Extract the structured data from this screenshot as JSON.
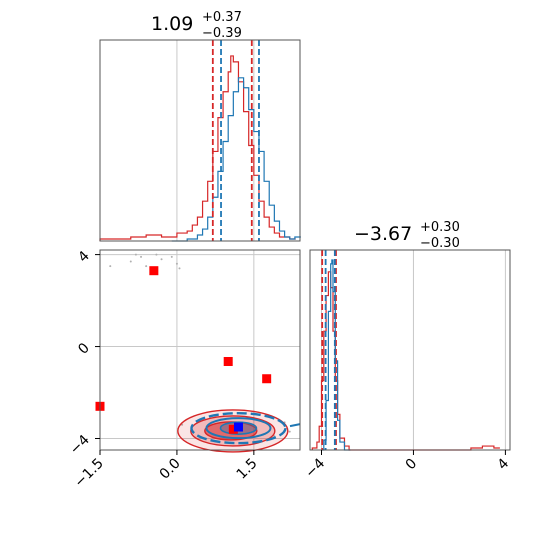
{
  "chart_data": {
    "type": "corner",
    "colors": {
      "series_a": "#d62728",
      "series_b": "#1f77b4",
      "marker_red": "#ff0000",
      "marker_blue": "#0000ff",
      "grid": "#c8c8c8"
    },
    "param1": {
      "title_main": "1.09",
      "title_sup": "+0.37",
      "title_sub": "−0.39",
      "range": [
        -1.5,
        2.4
      ],
      "ticks": [
        -1.5,
        0.0,
        1.5
      ],
      "tick_labels": [
        "−1.5",
        "0.0",
        "1.5"
      ],
      "quantiles_red": [
        0.7,
        1.46
      ],
      "quantiles_blue": [
        0.86,
        1.6
      ],
      "hist_red": [
        [
          -1.5,
          0.01
        ],
        [
          -1.2,
          0.01
        ],
        [
          -0.9,
          0.02
        ],
        [
          -0.6,
          0.03
        ],
        [
          -0.3,
          0.02
        ],
        [
          0.0,
          0.04
        ],
        [
          0.2,
          0.05
        ],
        [
          0.3,
          0.08
        ],
        [
          0.4,
          0.12
        ],
        [
          0.5,
          0.2
        ],
        [
          0.6,
          0.3
        ],
        [
          0.7,
          0.45
        ],
        [
          0.8,
          0.62
        ],
        [
          0.9,
          0.75
        ],
        [
          1.0,
          0.85
        ],
        [
          1.05,
          0.93
        ],
        [
          1.1,
          0.9
        ],
        [
          1.2,
          0.8
        ],
        [
          1.3,
          0.65
        ],
        [
          1.4,
          0.48
        ],
        [
          1.5,
          0.33
        ],
        [
          1.6,
          0.2
        ],
        [
          1.7,
          0.12
        ],
        [
          1.8,
          0.07
        ],
        [
          1.9,
          0.04
        ],
        [
          2.0,
          0.02
        ],
        [
          2.2,
          0.01
        ]
      ],
      "hist_blue": [
        [
          -0.1,
          0.0
        ],
        [
          0.2,
          0.01
        ],
        [
          0.4,
          0.03
        ],
        [
          0.5,
          0.06
        ],
        [
          0.6,
          0.12
        ],
        [
          0.7,
          0.22
        ],
        [
          0.8,
          0.35
        ],
        [
          0.9,
          0.5
        ],
        [
          1.0,
          0.63
        ],
        [
          1.1,
          0.75
        ],
        [
          1.2,
          0.82
        ],
        [
          1.3,
          0.77
        ],
        [
          1.4,
          0.66
        ],
        [
          1.5,
          0.55
        ],
        [
          1.6,
          0.45
        ],
        [
          1.7,
          0.3
        ],
        [
          1.8,
          0.18
        ],
        [
          1.9,
          0.1
        ],
        [
          2.0,
          0.05
        ],
        [
          2.1,
          0.02
        ],
        [
          2.2,
          0.01
        ],
        [
          2.3,
          0.02
        ]
      ]
    },
    "param2": {
      "title_main": "−3.67",
      "title_sup": "+0.30",
      "title_sub": "−0.30",
      "range": [
        -4.5,
        4.2
      ],
      "ticks": [
        -4,
        0,
        4
      ],
      "tick_labels": [
        "−4",
        "0",
        "4"
      ],
      "quantiles_red": [
        -3.97,
        -3.37
      ],
      "quantiles_blue": [
        -3.82,
        -3.42
      ],
      "hist_red": [
        [
          -4.4,
          0.01
        ],
        [
          -4.2,
          0.04
        ],
        [
          -4.1,
          0.12
        ],
        [
          -4.0,
          0.35
        ],
        [
          -3.9,
          0.6
        ],
        [
          -3.8,
          0.78
        ],
        [
          -3.7,
          0.9
        ],
        [
          -3.6,
          0.82
        ],
        [
          -3.5,
          0.6
        ],
        [
          -3.4,
          0.35
        ],
        [
          -3.3,
          0.18
        ],
        [
          -3.2,
          0.06
        ],
        [
          -3.0,
          0.02
        ],
        [
          -2.8,
          0.0
        ],
        [
          2.5,
          0.01
        ],
        [
          3.0,
          0.02
        ],
        [
          3.5,
          0.01
        ]
      ],
      "hist_blue": [
        [
          -4.0,
          0.0
        ],
        [
          -3.9,
          0.05
        ],
        [
          -3.8,
          0.25
        ],
        [
          -3.7,
          0.7
        ],
        [
          -3.6,
          0.94
        ],
        [
          -3.55,
          0.96
        ],
        [
          -3.5,
          0.8
        ],
        [
          -3.4,
          0.45
        ],
        [
          -3.3,
          0.15
        ],
        [
          -3.2,
          0.04
        ],
        [
          -3.0,
          0.0
        ]
      ]
    },
    "red_markers": [
      {
        "x": -0.45,
        "y": 3.3
      },
      {
        "x": 1.0,
        "y": -0.65
      },
      {
        "x": 1.75,
        "y": -1.4
      },
      {
        "x": -1.5,
        "y": -2.6
      },
      {
        "x": 1.1,
        "y": -3.6
      }
    ],
    "blue_marker": {
      "x": 1.2,
      "y": -3.5
    },
    "contour_red_center": {
      "x": 1.09,
      "y": -3.67
    },
    "contour_blue_center": {
      "x": 1.2,
      "y": -3.55
    }
  }
}
